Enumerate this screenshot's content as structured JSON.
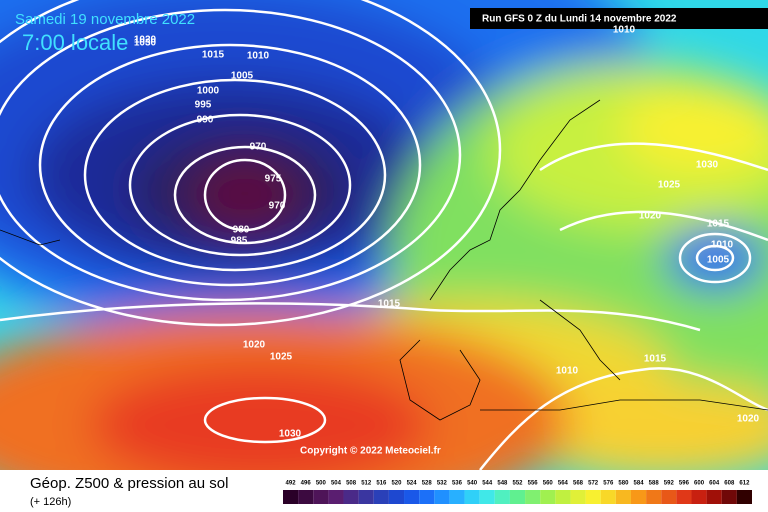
{
  "header": {
    "date": "Samedi 19 novembre 2022",
    "time": "7:00 locale",
    "run": "Run GFS 0 Z du Lundi 14 novembre 2022"
  },
  "footer": {
    "title": "Géop. Z500 & pression au sol",
    "lead": "(+ 126h)",
    "copyright": "Copyright © 2022 Meteociel.fr"
  },
  "legend": {
    "labels": [
      492,
      496,
      500,
      504,
      508,
      512,
      516,
      520,
      524,
      528,
      532,
      536,
      540,
      544,
      548,
      552,
      556,
      560,
      564,
      568,
      572,
      576,
      580,
      584,
      588,
      592,
      596,
      600,
      604,
      608,
      612
    ],
    "colors": [
      "#2a0028",
      "#3c0a40",
      "#4e1458",
      "#5a1e70",
      "#4a2a88",
      "#3a36a0",
      "#2a40b8",
      "#1e48d0",
      "#1a58e8",
      "#1c70f8",
      "#2090ff",
      "#28b0ff",
      "#30d0f8",
      "#40e8e8",
      "#50f0c0",
      "#60f090",
      "#80f070",
      "#a0f050",
      "#c0f040",
      "#e0f038",
      "#f8f030",
      "#f8d828",
      "#f8b820",
      "#f89818",
      "#f07818",
      "#e85818",
      "#e03818",
      "#c82010",
      "#a01008",
      "#700808",
      "#300000"
    ]
  },
  "isobar_labels": [
    1030,
    1020,
    1015,
    1010,
    1005,
    1000,
    995,
    990,
    970,
    975,
    970,
    980,
    985,
    1015,
    1020,
    1025,
    1030,
    1010,
    1030,
    1025,
    1020,
    1015,
    1010,
    1005,
    1015,
    1010,
    1020
  ]
}
